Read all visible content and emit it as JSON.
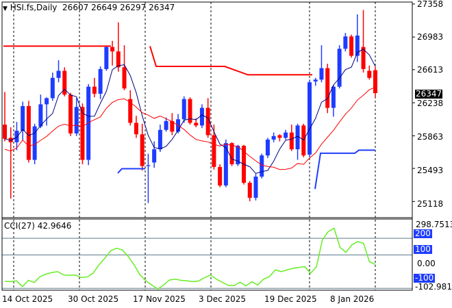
{
  "header": {
    "symbol_text": "HSI.fs,Daily",
    "open": "26607",
    "high": "26649",
    "low": "26297",
    "close": "26347"
  },
  "price_axis": {
    "labels": [
      "27358",
      "26983",
      "26613",
      "26238",
      "25863",
      "25493",
      "25118"
    ],
    "last_price_label": "26347"
  },
  "cci": {
    "title": "CCI(27) 42.9646",
    "axis_labels": {
      "max": "298.7513",
      "p200": "200",
      "p100": "100",
      "zero": "0.00",
      "m100": "-100",
      "min": "-102.9817"
    }
  },
  "dates": [
    "14 Oct 2025",
    "30 Oct 2025",
    "17 Nov 2025",
    "3 Dec 2025",
    "19 Dec 2025",
    "8 Jan 2026"
  ],
  "colors": {
    "bull": "#1e3cff",
    "bear": "#ff0000",
    "ma_fast": "#000080",
    "ma_slow": "#ff0000",
    "cci": "#66ee22",
    "grid": "#000000"
  },
  "chart_data": {
    "type": "candlestick",
    "title": "HSI.fs,Daily",
    "ylim": [
      24950,
      27380
    ],
    "candles": [
      [
        25990,
        26360,
        25800,
        25830
      ],
      [
        25840,
        25960,
        25150,
        25790
      ],
      [
        25790,
        26020,
        25700,
        25920
      ],
      [
        25920,
        26250,
        25810,
        26200
      ],
      [
        26200,
        26260,
        25560,
        25590
      ],
      [
        25590,
        26000,
        25540,
        25970
      ],
      [
        25970,
        26330,
        25950,
        26220
      ],
      [
        26220,
        26300,
        25980,
        26290
      ],
      [
        26290,
        26580,
        26260,
        26520
      ],
      [
        26520,
        26720,
        26470,
        26600
      ],
      [
        26600,
        26640,
        26310,
        26330
      ],
      [
        26330,
        26350,
        25860,
        25890
      ],
      [
        25890,
        26290,
        25860,
        26190
      ],
      [
        26190,
        26230,
        25540,
        25590
      ],
      [
        25590,
        26450,
        25530,
        26420
      ],
      [
        26420,
        26520,
        26300,
        26340
      ],
      [
        26340,
        26650,
        26280,
        26620
      ],
      [
        26620,
        26880,
        26600,
        26870
      ],
      [
        26870,
        26940,
        26660,
        26820
      ],
      [
        26820,
        27150,
        26590,
        26640
      ],
      [
        26640,
        26890,
        26380,
        26400
      ],
      [
        26280,
        26380,
        25980,
        26010
      ],
      [
        26010,
        26090,
        25840,
        25880
      ],
      [
        25880,
        26000,
        25470,
        25520
      ],
      [
        25520,
        25660,
        25100,
        25530
      ],
      [
        25560,
        25800,
        25500,
        25710
      ],
      [
        25710,
        25990,
        25680,
        25930
      ],
      [
        25930,
        26070,
        25910,
        26030
      ],
      [
        26030,
        26120,
        25870,
        25910
      ],
      [
        25910,
        26110,
        25890,
        26050
      ],
      [
        26050,
        26310,
        26010,
        26280
      ],
      [
        26280,
        26300,
        25990,
        26010
      ],
      [
        26010,
        26060,
        25960,
        25980
      ],
      [
        25980,
        26220,
        25950,
        26180
      ],
      [
        26180,
        26290,
        25840,
        25870
      ],
      [
        25870,
        25990,
        25480,
        25510
      ],
      [
        25510,
        25540,
        25280,
        25300
      ],
      [
        25300,
        25820,
        25280,
        25780
      ],
      [
        25780,
        25790,
        25520,
        25540
      ],
      [
        25540,
        25760,
        25520,
        25750
      ],
      [
        25750,
        25760,
        25310,
        25330
      ],
      [
        25330,
        25350,
        25120,
        25160
      ],
      [
        25160,
        25430,
        25130,
        25400
      ],
      [
        25400,
        25660,
        25380,
        25640
      ],
      [
        25640,
        25840,
        25610,
        25820
      ],
      [
        25820,
        25900,
        25790,
        25860
      ],
      [
        25870,
        25880,
        25800,
        25840
      ],
      [
        25840,
        25930,
        25820,
        25900
      ],
      [
        25900,
        25990,
        25690,
        25710
      ],
      [
        25710,
        26000,
        25590,
        25980
      ],
      [
        25980,
        26000,
        25620,
        25640
      ],
      [
        25650,
        26500,
        25620,
        26470
      ],
      [
        26480,
        26520,
        26430,
        26500
      ],
      [
        26500,
        26890,
        26470,
        26630
      ],
      [
        26630,
        26680,
        26120,
        26180
      ],
      [
        26180,
        26440,
        26080,
        26420
      ],
      [
        26420,
        26890,
        26400,
        26850
      ],
      [
        26850,
        27030,
        26820,
        26990
      ],
      [
        26990,
        27010,
        26750,
        26770
      ],
      [
        26770,
        27240,
        26700,
        27000
      ],
      [
        26870,
        27290,
        26580,
        26620
      ],
      [
        26600,
        26660,
        26500,
        26520
      ],
      [
        26607,
        26649,
        26297,
        26347
      ]
    ],
    "ma_fast_note": "fast moving average (navy)",
    "ma_slow_note": "slow moving average (red)"
  }
}
